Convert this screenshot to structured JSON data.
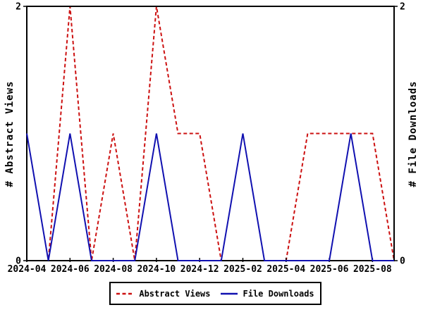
{
  "axes": {
    "y_left": {
      "label": "# Abstract Views",
      "min": 0,
      "max": 2,
      "ticks": [
        {
          "v": 0,
          "label": "0"
        },
        {
          "v": 2,
          "label": "2"
        }
      ]
    },
    "y_right": {
      "label": "# File Downloads",
      "min": 0,
      "max": 2,
      "ticks": [
        {
          "v": 0,
          "label": "0"
        },
        {
          "v": 2,
          "label": "2"
        }
      ]
    },
    "x": {
      "label_every": 2
    }
  },
  "legend": [
    {
      "label": "Abstract Views",
      "color": "#cc1111",
      "style": "dashed"
    },
    {
      "label": "File Downloads",
      "color": "#1010b0",
      "style": "solid"
    }
  ],
  "colors": {
    "axis": "#000000",
    "background": "#ffffff"
  },
  "chart_data": {
    "type": "line",
    "x": [
      "2024-04",
      "2024-05",
      "2024-06",
      "2024-07",
      "2024-08",
      "2024-09",
      "2024-10",
      "2024-11",
      "2024-12",
      "2025-01",
      "2025-02",
      "2025-03",
      "2025-04",
      "2025-05",
      "2025-06",
      "2025-07",
      "2025-08",
      "2025-09"
    ],
    "x_tick_labels": [
      "2024-04",
      "2024-06",
      "2024-08",
      "2024-10",
      "2024-12",
      "2025-02",
      "2025-04",
      "2025-06",
      "2025-08"
    ],
    "series": [
      {
        "name": "Abstract Views",
        "color": "#cc1111",
        "style": "dashed",
        "values": [
          0,
          0,
          2,
          0,
          1,
          0,
          2,
          1,
          1,
          0,
          0,
          0,
          0,
          1,
          1,
          1,
          1,
          0
        ]
      },
      {
        "name": "File Downloads",
        "color": "#1010b0",
        "style": "solid",
        "values": [
          1,
          0,
          1,
          0,
          0,
          0,
          1,
          0,
          0,
          0,
          1,
          0,
          0,
          0,
          0,
          1,
          0,
          0
        ]
      }
    ],
    "ylim": [
      0,
      2
    ],
    "ylabel_left": "# Abstract Views",
    "ylabel_right": "# File Downloads",
    "grid": false,
    "legend_position": "bottom-center"
  }
}
